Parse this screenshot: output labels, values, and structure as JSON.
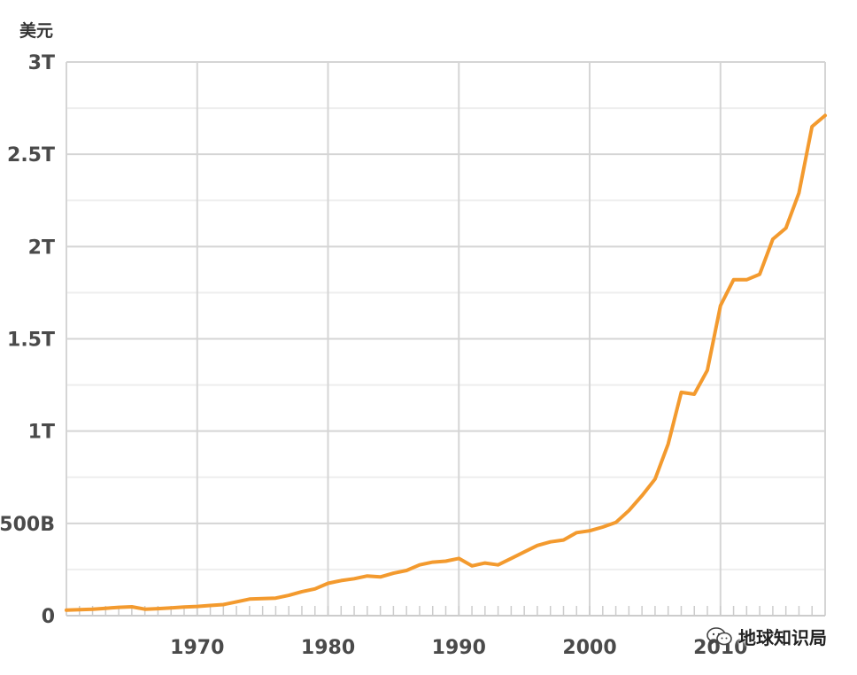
{
  "chart_data": {
    "type": "line",
    "title": "",
    "xlabel": "",
    "ylabel": "美元",
    "x_ticks": [
      "1970",
      "1980",
      "1990",
      "2000",
      "2010"
    ],
    "y_ticks": [
      "0",
      "500B",
      "1T",
      "1.5T",
      "2T",
      "2.5T",
      "3T"
    ],
    "xlim": [
      1960,
      2018
    ],
    "ylim": [
      0,
      3000
    ],
    "grid": true,
    "series": [
      {
        "name": "",
        "color": "#f39a2e",
        "x": [
          1960,
          1961,
          1962,
          1963,
          1964,
          1965,
          1966,
          1967,
          1968,
          1969,
          1970,
          1971,
          1972,
          1973,
          1974,
          1975,
          1976,
          1977,
          1978,
          1979,
          1980,
          1981,
          1982,
          1983,
          1984,
          1985,
          1986,
          1987,
          1988,
          1989,
          1990,
          1991,
          1992,
          1993,
          1994,
          1995,
          1996,
          1997,
          1998,
          1999,
          2000,
          2001,
          2002,
          2003,
          2004,
          2005,
          2006,
          2007,
          2008,
          2009,
          2010,
          2011,
          2012,
          2013,
          2014,
          2015,
          2016,
          2017,
          2018
        ],
        "values": [
          30,
          32,
          35,
          40,
          45,
          48,
          35,
          38,
          42,
          47,
          50,
          55,
          60,
          75,
          90,
          92,
          95,
          110,
          130,
          145,
          175,
          190,
          200,
          215,
          210,
          230,
          245,
          275,
          290,
          295,
          310,
          270,
          285,
          275,
          310,
          345,
          380,
          400,
          410,
          450,
          460,
          480,
          505,
          570,
          650,
          740,
          930,
          1210,
          1200,
          1330,
          1680,
          1820,
          1820,
          1850,
          2040,
          2100,
          2290,
          2650,
          2710
        ]
      }
    ]
  },
  "watermark": {
    "icon": "wechat-icon",
    "text": "地球知识局"
  }
}
